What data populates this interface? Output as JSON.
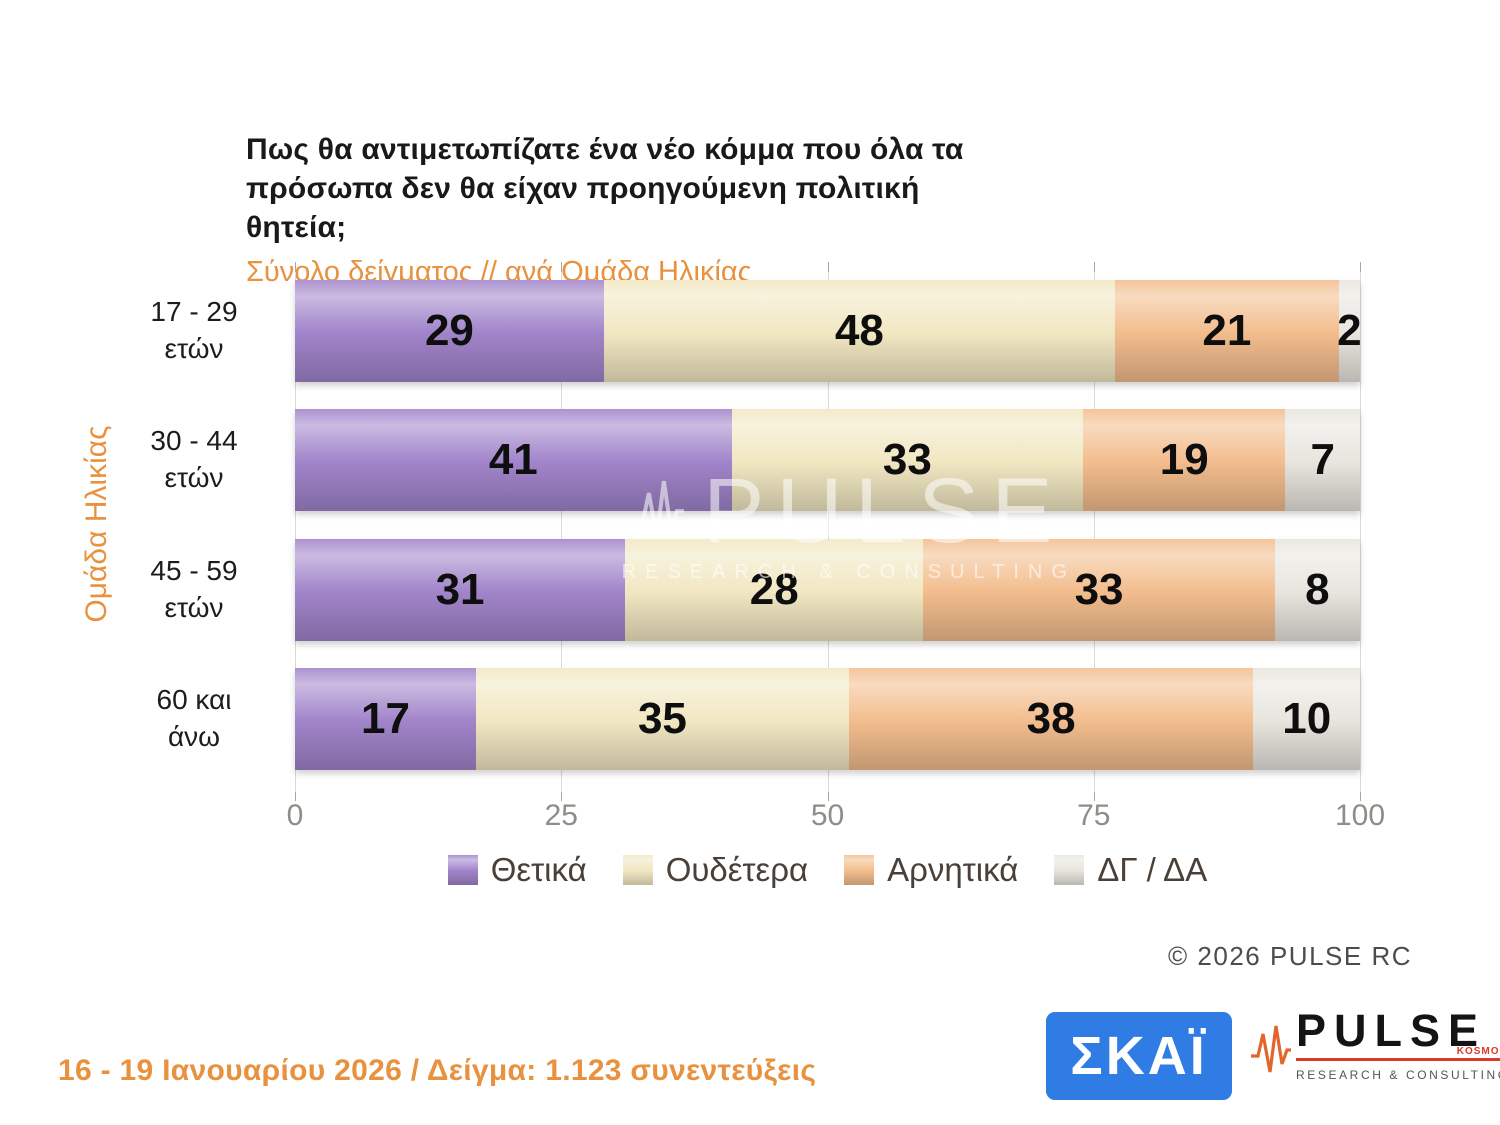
{
  "header": {
    "title": "Πως θα αντιμετωπίζατε ένα νέο κόμμα που όλα τα πρόσωπα δεν θα είχαν προηγούμενη πολιτική θητεία;",
    "subtitle": "Σύνολο δείγματος // ανά Ομάδα Ηλικίας"
  },
  "chart_data": {
    "type": "bar",
    "orientation": "horizontal-stacked",
    "title": "Πως θα αντιμετωπίζατε ένα νέο κόμμα που όλα τα πρόσωπα δεν θα είχαν προηγούμενη πολιτική θητεία;",
    "subtitle": "Σύνολο δείγματος // ανά Ομάδα Ηλικίας",
    "ylabel": "Ομάδα Ηλικίας",
    "xlabel": "",
    "categories": [
      "17 - 29\nετών",
      "30 - 44\nετών",
      "45 - 59\nετών",
      "60 και\nάνω"
    ],
    "series": [
      {
        "name": "Θετικά",
        "color": "#a184ca",
        "values": [
          29,
          41,
          31,
          17
        ]
      },
      {
        "name": "Ουδέτερα",
        "color": "#f1e7c2",
        "values": [
          48,
          33,
          28,
          35
        ]
      },
      {
        "name": "Αρνητικά",
        "color": "#f3bd8d",
        "values": [
          21,
          19,
          33,
          38
        ]
      },
      {
        "name": "ΔΓ / ΔΑ",
        "color": "#e8e5de",
        "values": [
          2,
          7,
          8,
          10
        ]
      }
    ],
    "x_ticks": [
      0,
      25,
      50,
      75,
      100
    ],
    "xlim": [
      0,
      100
    ],
    "grid": true,
    "legend_position": "bottom"
  },
  "watermark": {
    "main": "PULSE",
    "sub": "RESEARCH & CONSULTING"
  },
  "footer": {
    "copyright": "©  2026  PULSE RC",
    "survey_info": "16 - 19 Ιανουαρίου 2026  /  Δείγμα:  1.123 συνεντεύξεις"
  },
  "logos": {
    "skai": "ΣΚΑΪ",
    "pulse": "PULSE",
    "pulse_sub": "RESEARCH & CONSULTING",
    "pulse_kosmon": "KOSMON"
  },
  "colors": {
    "accent_orange": "#e8923f",
    "skai_blue": "#2e7ce4",
    "pulse_red": "#d93a26"
  }
}
